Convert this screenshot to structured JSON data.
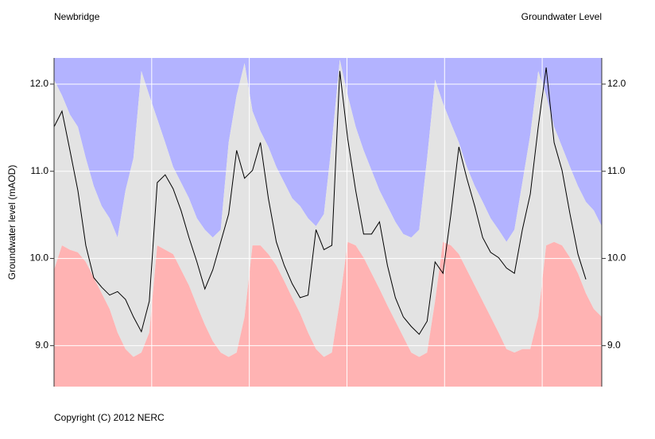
{
  "chart_data": {
    "type": "envelope-line",
    "title": "Newbridge",
    "subtitle": "Groundwater Level",
    "y_label": "Groundwater level (mAOD)",
    "footer": "Copyright (C) 2012 NERC",
    "ylim": [
      8.53,
      12.3
    ],
    "yticks": [
      {
        "value": 9,
        "label": "9.0"
      },
      {
        "value": 10,
        "label": "10.0"
      },
      {
        "value": 11,
        "label": "11.0"
      },
      {
        "value": 12,
        "label": "12.0"
      }
    ],
    "xlim": [
      0,
      69
    ],
    "xticks": [
      12.3,
      24.6,
      36.9,
      49.2,
      61.5
    ],
    "grid": true,
    "above_color": "#b3b3ff",
    "band_color": "#e3e3e3",
    "below_color": "#ffb3b3",
    "line_color": "#000000",
    "grid_color": "#ffffff",
    "upper": [
      12.05,
      11.87,
      11.65,
      11.51,
      11.15,
      10.83,
      10.6,
      10.46,
      10.24,
      10.78,
      11.15,
      12.15,
      11.87,
      11.6,
      11.33,
      11.05,
      10.87,
      10.69,
      10.46,
      10.33,
      10.24,
      10.33,
      11.33,
      11.87,
      12.24,
      11.69,
      11.46,
      11.28,
      11.05,
      10.87,
      10.69,
      10.6,
      10.46,
      10.37,
      10.51,
      11.33,
      12.28,
      11.87,
      11.51,
      11.24,
      11.01,
      10.78,
      10.6,
      10.42,
      10.28,
      10.24,
      10.33,
      11.15,
      12.05,
      11.78,
      11.55,
      11.33,
      11.05,
      10.83,
      10.65,
      10.46,
      10.33,
      10.19,
      10.33,
      10.87,
      11.42,
      12.15,
      11.87,
      11.51,
      11.28,
      11.05,
      10.83,
      10.65,
      10.55,
      10.37
    ],
    "lower": [
      9.87,
      10.15,
      10.1,
      10.07,
      9.96,
      9.78,
      9.6,
      9.42,
      9.15,
      8.96,
      8.87,
      8.92,
      9.15,
      10.15,
      10.1,
      10.05,
      9.87,
      9.69,
      9.46,
      9.24,
      9.05,
      8.92,
      8.87,
      8.92,
      9.33,
      10.15,
      10.15,
      10.05,
      9.92,
      9.74,
      9.55,
      9.37,
      9.15,
      8.96,
      8.87,
      8.92,
      9.51,
      10.19,
      10.15,
      10.01,
      9.83,
      9.65,
      9.46,
      9.28,
      9.1,
      8.92,
      8.87,
      8.92,
      9.51,
      10.19,
      10.15,
      10.05,
      9.87,
      9.69,
      9.51,
      9.33,
      9.15,
      8.96,
      8.92,
      8.96,
      8.96,
      9.33,
      10.15,
      10.19,
      10.15,
      10.01,
      9.83,
      9.6,
      9.42,
      9.33
    ],
    "values": [
      11.51,
      11.69,
      11.24,
      10.78,
      10.15,
      9.78,
      9.67,
      9.58,
      9.62,
      9.53,
      9.33,
      9.16,
      9.51,
      10.87,
      10.96,
      10.8,
      10.55,
      10.24,
      9.96,
      9.65,
      9.87,
      10.19,
      10.51,
      11.24,
      10.92,
      11.01,
      11.33,
      10.69,
      10.19,
      9.92,
      9.71,
      9.55,
      9.58,
      10.33,
      10.1,
      10.15,
      12.15,
      11.37,
      10.78,
      10.28,
      10.28,
      10.42,
      9.92,
      9.55,
      9.33,
      9.22,
      9.13,
      9.28,
      9.96,
      9.83,
      10.51,
      11.28,
      10.92,
      10.6,
      10.24,
      10.07,
      10.01,
      9.89,
      9.83,
      10.33,
      10.74,
      11.51,
      12.19,
      11.33,
      11.01,
      10.51,
      10.05,
      9.76,
      null,
      null
    ]
  }
}
